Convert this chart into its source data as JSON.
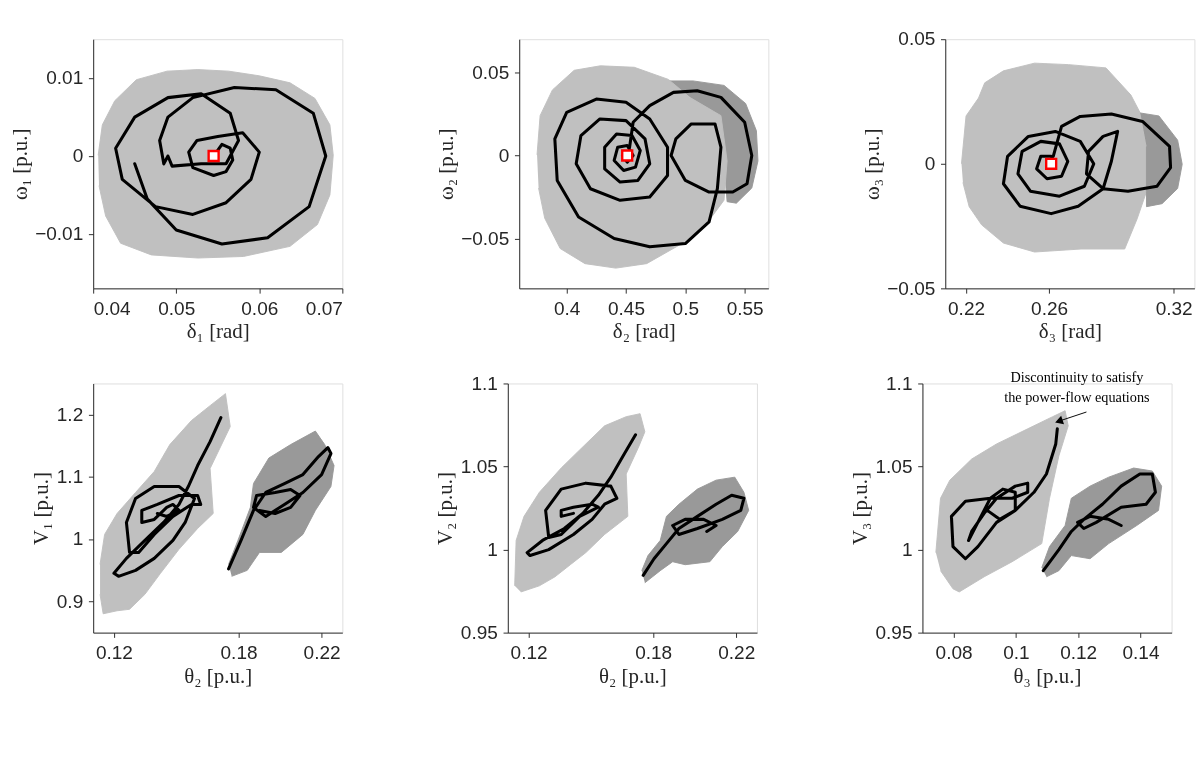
{
  "chart_data": [
    {
      "type": "line",
      "xlabel": "δ₁ [rad]",
      "ylabel": "ω₁ [p.u.]",
      "xlim": [
        0.04,
        0.07
      ],
      "ylim": [
        -0.017,
        0.015
      ],
      "xticks": [
        0.04,
        0.05,
        0.06,
        0.07
      ],
      "yticks": [
        -0.01,
        0,
        0.01
      ],
      "series": [
        {
          "type": "area",
          "color": "#c0c0c0",
          "x": [
            0.0406,
            0.0411,
            0.0426,
            0.0452,
            0.0489,
            0.0526,
            0.0563,
            0.06,
            0.0637,
            0.0667,
            0.0685,
            0.0689,
            0.0685,
            0.067,
            0.0637,
            0.0581,
            0.0526,
            0.047,
            0.0433,
            0.0415,
            0.0407
          ],
          "values": [
            0.0001,
            0.004,
            0.0071,
            0.0098,
            0.0109,
            0.0111,
            0.0109,
            0.0103,
            0.0094,
            0.0074,
            0.004,
            0.0001,
            -0.005,
            -0.0088,
            -0.0116,
            -0.0129,
            -0.0131,
            -0.0127,
            -0.0112,
            -0.0077,
            -0.0038
          ]
        },
        {
          "type": "line",
          "color": "#000000",
          "x": [
            0.0545,
            0.0555,
            0.0565,
            0.0568,
            0.056,
            0.0545,
            0.052,
            0.0515,
            0.0525,
            0.055,
            0.058,
            0.06,
            0.059,
            0.056,
            0.052,
            0.0475,
            0.0435,
            0.0427,
            0.045,
            0.049,
            0.053,
            0.0565,
            0.0575,
            0.056,
            0.053,
            0.0495,
            0.049,
            0.0485,
            0.048,
            0.049,
            0.052,
            0.057,
            0.062,
            0.0665,
            0.068,
            0.066,
            0.061,
            0.0555,
            0.05,
            0.0465,
            0.045
          ],
          "values": [
            0,
            0.0015,
            0.001,
            -0.0005,
            -0.002,
            -0.0025,
            -0.0015,
            0.0005,
            0.002,
            0.0025,
            0.003,
            0.0005,
            -0.003,
            -0.006,
            -0.0075,
            -0.0065,
            -0.003,
            0.001,
            0.005,
            0.0075,
            0.008,
            0.0055,
            0.002,
            -0.001,
            -0.001,
            -0.0013,
            0,
            -0.001,
            0.002,
            0.005,
            0.0075,
            0.0088,
            0.0085,
            0.0055,
            0,
            -0.0065,
            -0.0105,
            -0.0113,
            -0.0095,
            -0.0055,
            -0.001
          ]
        },
        {
          "type": "scatter",
          "color": "#ff0000",
          "marker": "square",
          "x": [
            0.0545
          ],
          "values": [
            0
          ]
        }
      ]
    },
    {
      "type": "line",
      "xlabel": "δ₂ [rad]",
      "ylabel": "ω₂ [p.u.]",
      "xlim": [
        0.36,
        0.57
      ],
      "ylim": [
        -0.08,
        0.07
      ],
      "xticks": [
        0.4,
        0.45,
        0.5,
        0.55
      ],
      "yticks": [
        -0.05,
        0,
        0.05
      ],
      "series": [
        {
          "type": "area",
          "color": "#999999",
          "x": [
            0.4857,
            0.5065,
            0.5326,
            0.5508,
            0.5599,
            0.5612,
            0.556,
            0.543,
            0.5352,
            0.5326,
            0.53,
            0.5039
          ],
          "values": [
            0.0449,
            0.0449,
            0.0422,
            0.0313,
            0.0149,
            -0.0033,
            -0.0196,
            -0.0287,
            -0.0278,
            -0.0033,
            0.024,
            0.0349
          ]
        },
        {
          "type": "area",
          "color": "#c0c0c0",
          "x": [
            0.375,
            0.3776,
            0.388,
            0.4063,
            0.4284,
            0.457,
            0.4857,
            0.5039,
            0.53,
            0.5352,
            0.5326,
            0.5195,
            0.4987,
            0.4674,
            0.4414,
            0.4154,
            0.3945,
            0.3815,
            0.3763
          ],
          "values": [
            0.0004,
            0.024,
            0.0395,
            0.0513,
            0.054,
            0.0531,
            0.0458,
            0.0349,
            0.024,
            -0.0033,
            -0.0269,
            -0.0396,
            -0.0524,
            -0.0651,
            -0.0678,
            -0.0651,
            -0.056,
            -0.0378,
            -0.0196
          ]
        },
        {
          "type": "line",
          "color": "#000000",
          "x": [
            0.453,
            0.456,
            0.47,
            0.49,
            0.51,
            0.53,
            0.55,
            0.556,
            0.552,
            0.54,
            0.52,
            0.5,
            0.488,
            0.492,
            0.505,
            0.525,
            0.53,
            0.527,
            0.52,
            0.5,
            0.47,
            0.44,
            0.41,
            0.392,
            0.39,
            0.4,
            0.425,
            0.45,
            0.47,
            0.485,
            0.485,
            0.47,
            0.445,
            0.42,
            0.408,
            0.412,
            0.428,
            0.45,
            0.466,
            0.47,
            0.46,
            0.445,
            0.432,
            0.432,
            0.442,
            0.455,
            0.462,
            0.458,
            0.448,
            0.44,
            0.443,
            0.451,
            0.456,
            0.451,
            0.447
          ],
          "values": [
            0.005,
            0.02,
            0.03,
            0.038,
            0.039,
            0.035,
            0.02,
            0,
            -0.017,
            -0.022,
            -0.022,
            -0.015,
            0,
            0.01,
            0.019,
            0.019,
            0.005,
            -0.02,
            -0.04,
            -0.053,
            -0.055,
            -0.05,
            -0.037,
            -0.015,
            0.01,
            0.026,
            0.034,
            0.032,
            0.022,
            0.005,
            -0.012,
            -0.025,
            -0.027,
            -0.02,
            -0.005,
            0.012,
            0.022,
            0.021,
            0.01,
            -0.005,
            -0.015,
            -0.016,
            -0.008,
            0.005,
            0.013,
            0.012,
            0.003,
            -0.007,
            -0.009,
            -0.003,
            0.005,
            0.006,
            0,
            -0.004,
            0
          ]
        },
        {
          "type": "scatter",
          "color": "#ff0000",
          "marker": "square",
          "x": [
            0.451
          ],
          "values": [
            0
          ]
        }
      ]
    },
    {
      "type": "line",
      "xlabel": "δ₃ [rad]",
      "ylabel": "ω₃ [p.u.]",
      "xlim": [
        0.21,
        0.33
      ],
      "ylim": [
        -0.05,
        0.05
      ],
      "xticks": [
        0.22,
        0.26,
        0.32
      ],
      "yticks": [
        -0.05,
        0,
        0.05
      ],
      "series": [
        {
          "type": "area",
          "color": "#c0c0c0",
          "x": [
            0.2178,
            0.22,
            0.226,
            0.229,
            0.238,
            0.253,
            0.2694,
            0.2874,
            0.2994,
            0.3039,
            0.3069,
            0.3069,
            0.3024,
            0.2964,
            0.2754,
            0.253,
            0.238,
            0.2275,
            0.2215,
            0.2185
          ],
          "values": [
            0,
            0.0192,
            0.0264,
            0.0325,
            0.0373,
            0.0404,
            0.0398,
            0.0385,
            0.0276,
            0.0204,
            0.007,
            -0.0112,
            -0.0221,
            -0.0342,
            -0.0342,
            -0.0354,
            -0.0318,
            -0.0245,
            -0.0172,
            -0.0075
          ]
        },
        {
          "type": "area",
          "color": "#999999",
          "x": [
            0.3039,
            0.3129,
            0.3219,
            0.3241,
            0.3219,
            0.3144,
            0.3069,
            0.3069,
            0.3069
          ],
          "values": [
            0.0204,
            0.0192,
            0.0095,
            -0.0002,
            -0.0099,
            -0.016,
            -0.0172,
            -0.0112,
            0.007
          ]
        },
        {
          "type": "line",
          "color": "#000000",
          "x": [
            0.262,
            0.266,
            0.275,
            0.29,
            0.305,
            0.318,
            0.3185,
            0.312,
            0.298,
            0.286,
            0.278,
            0.279,
            0.286,
            0.293,
            0.29,
            0.286,
            0.274,
            0.261,
            0.246,
            0.238,
            0.24,
            0.25,
            0.263,
            0.275,
            0.2815,
            0.277,
            0.265,
            0.251,
            0.245,
            0.247,
            0.256,
            0.265,
            0.269,
            0.266,
            0.259,
            0.254,
            0.256,
            0.261,
            0.263
          ],
          "values": [
            0.003,
            0.015,
            0.019,
            0.02,
            0.017,
            0.007,
            -0.0015,
            -0.009,
            -0.011,
            -0.01,
            -0.004,
            0.005,
            0.011,
            0.013,
            0.001,
            -0.01,
            -0.017,
            -0.02,
            -0.017,
            -0.008,
            0.003,
            0.011,
            0.013,
            0.009,
            0,
            -0.009,
            -0.013,
            -0.011,
            -0.004,
            0.005,
            0.009,
            0.008,
            0.001,
            -0.005,
            -0.006,
            -0.002,
            0.003,
            0.003,
            0
          ]
        },
        {
          "type": "scatter",
          "color": "#ff0000",
          "marker": "square",
          "x": [
            0.261
          ],
          "values": [
            0
          ]
        }
      ]
    },
    {
      "type": "line",
      "xlabel": "θ₂ [p.u.]",
      "ylabel": "V₁ [p.u.]",
      "xlim": [
        0.11,
        0.23
      ],
      "ylim": [
        0.85,
        1.25
      ],
      "xticks": [
        0.12,
        0.18,
        0.22
      ],
      "yticks": [
        0.9,
        1,
        1.1,
        1.2
      ],
      "series": [
        {
          "type": "area",
          "color": "#c0c0c0",
          "x": [
            0.1133,
            0.1155,
            0.1215,
            0.1304,
            0.1394,
            0.1469,
            0.1573,
            0.1663,
            0.1737,
            0.176,
            0.1663,
            0.1678,
            0.1603,
            0.1513,
            0.1424,
            0.1349,
            0.1275,
            0.1215,
            0.1148,
            0.1133
          ],
          "values": [
            0.9596,
            1.0077,
            1.0413,
            1.075,
            1.1087,
            1.1519,
            1.1904,
            1.2144,
            1.2337,
            1.1808,
            1.1135,
            1.0413,
            1.0173,
            0.9837,
            0.9452,
            0.9115,
            0.8875,
            0.8851,
            0.8803,
            0.9115
          ]
        },
        {
          "type": "area",
          "color": "#999999",
          "x": [
            0.1752,
            0.1797,
            0.1857,
            0.1872,
            0.1946,
            0.2051,
            0.217,
            0.2215,
            0.226,
            0.2245,
            0.217,
            0.211,
            0.2006,
            0.1901,
            0.1842,
            0.1767
          ],
          "values": [
            0.9596,
            0.9981,
            1.051,
            1.0894,
            1.1303,
            1.1519,
            1.1736,
            1.1519,
            1.1183,
            1.0846,
            1.0462,
            1.0077,
            0.9788,
            0.9788,
            0.95,
            0.9404
          ]
        },
        {
          "type": "line",
          "color": "#000000",
          "x": [
            0.1715,
            0.1663,
            0.1603,
            0.1558,
            0.1513,
            0.1439,
            0.1349,
            0.126,
            0.12,
            0.1222,
            0.1304,
            0.1394,
            0.1484,
            0.1543,
            0.1588,
            0.1513,
            0.1394,
            0.1304,
            0.126,
            0.1275,
            0.1319,
            0.1394,
            0.1484,
            0.1573,
            0.1618,
            0.1603,
            0.1513,
            0.1409,
            0.1334,
            0.1334,
            0.1394,
            0.1454,
            0.1484,
            0.1513,
            0.1454,
            0.1409
          ],
          "values": [
            1.1952,
            1.1567,
            1.1183,
            1.0846,
            1.0558,
            1.0269,
            0.9981,
            0.9692,
            0.9452,
            0.9404,
            0.95,
            0.9692,
            0.9981,
            1.0269,
            1.0654,
            1.0846,
            1.0846,
            1.0654,
            1.0269,
            0.9788,
            0.9788,
            1.0077,
            1.0365,
            1.0558,
            1.0558,
            1.0702,
            1.0702,
            1.0558,
            1.0462,
            1.0269,
            1.0317,
            1.051,
            1.0558,
            1.0462,
            1.0365,
            1.0413
          ]
        },
        {
          "type": "line",
          "color": "#000000",
          "x": [
            0.1752,
            0.1812,
            0.1872,
            0.1931,
            0.2021,
            0.211,
            0.2185,
            0.223,
            0.2245,
            0.22,
            0.211,
            0.2021,
            0.1931,
            0.1872,
            0.1887,
            0.1976,
            0.2051,
            0.2096,
            0.2051,
            0.1976,
            0.1901
          ],
          "values": [
            0.9524,
            0.9981,
            1.0462,
            1.075,
            1.0894,
            1.1038,
            1.1327,
            1.1471,
            1.1375,
            1.1038,
            1.075,
            1.0558,
            1.0365,
            1.051,
            1.0702,
            1.075,
            1.0798,
            1.0702,
            1.051,
            1.0413,
            1.0462
          ]
        }
      ]
    },
    {
      "type": "line",
      "xlabel": "θ₂ [p.u.]",
      "ylabel": "V₂ [p.u.]",
      "xlim": [
        0.11,
        0.23
      ],
      "ylim": [
        0.95,
        1.1
      ],
      "xticks": [
        0.12,
        0.18,
        0.22
      ],
      "yticks": [
        0.95,
        1,
        1.05,
        1.1
      ],
      "series": [
        {
          "type": "area",
          "color": "#c0c0c0",
          "x": [
            0.1133,
            0.114,
            0.1178,
            0.1252,
            0.1357,
            0.1446,
            0.1566,
            0.167,
            0.1737,
            0.176,
            0.173,
            0.167,
            0.1678,
            0.1566,
            0.1476,
            0.1401,
            0.1327,
            0.1252,
            0.1163
          ],
          "values": [
            0.9782,
            1.0055,
            1.02,
            1.0345,
            1.0491,
            1.06,
            1.0745,
            1.08,
            1.0818,
            1.0709,
            1.0618,
            1.0455,
            1.02,
            1.0091,
            0.9982,
            0.9909,
            0.9836,
            0.9782,
            0.9745
          ]
        },
        {
          "type": "area",
          "color": "#999999",
          "x": [
            0.1745,
            0.1775,
            0.1834,
            0.1864,
            0.1924,
            0.2013,
            0.2103,
            0.2193,
            0.2237,
            0.226,
            0.2207,
            0.2133,
            0.2073,
            0.1954,
            0.1894,
            0.1834,
            0.176
          ],
          "values": [
            0.9873,
            0.9964,
            1.0055,
            1.02,
            1.0273,
            1.0364,
            1.0418,
            1.0436,
            1.0345,
            1.0236,
            1.0109,
            1.0018,
            0.9927,
            0.9909,
            0.9927,
            0.9873,
            0.98
          ]
        },
        {
          "type": "line",
          "color": "#000000",
          "x": [
            0.1715,
            0.1655,
            0.1596,
            0.1536,
            0.1461,
            0.1372,
            0.1267,
            0.1193,
            0.1207,
            0.1297,
            0.1416,
            0.1506,
            0.1566,
            0.1625,
            0.1596,
            0.1476,
            0.1357,
            0.1282,
            0.1297,
            0.1357,
            0.1446,
            0.1536,
            0.1506,
            0.1416,
            0.1357,
            0.1357,
            0.1416
          ],
          "values": [
            1.0691,
            1.0564,
            1.0436,
            1.0327,
            1.0218,
            1.0127,
            1.0055,
            0.9982,
            0.9964,
            1.0,
            1.0091,
            1.0182,
            1.0273,
            1.0309,
            1.0382,
            1.04,
            1.0364,
            1.0236,
            1.0073,
            1.0091,
            1.02,
            1.0255,
            1.0273,
            1.0255,
            1.0236,
            1.02,
            1.0218
          ]
        },
        {
          "type": "line",
          "color": "#000000",
          "x": [
            0.1752,
            0.1804,
            0.1864,
            0.1924,
            0.2013,
            0.2103,
            0.2178,
            0.2237,
            0.2222,
            0.2133,
            0.2013,
            0.1924,
            0.1894,
            0.1954,
            0.2043,
            0.2103,
            0.2058
          ],
          "values": [
            0.9845,
            0.9945,
            1.0036,
            1.0127,
            1.02,
            1.0273,
            1.0327,
            1.0309,
            1.0236,
            1.0182,
            1.0127,
            1.0091,
            1.0145,
            1.0182,
            1.0182,
            1.0145,
            1.0109
          ]
        }
      ]
    },
    {
      "type": "line",
      "xlabel": "θ₃ [p.u.]",
      "ylabel": "V₃ [p.u.]",
      "xlim": [
        0.07,
        0.15
      ],
      "ylim": [
        0.95,
        1.1
      ],
      "xticks": [
        0.08,
        0.1,
        0.12,
        0.14
      ],
      "yticks": [
        0.95,
        1,
        1.05,
        1.1
      ],
      "annotations": [
        {
          "text": "Discontinuity to satisfy the power-flow equations",
          "x": 0.1138,
          "y": 1.0773
        }
      ],
      "series": [
        {
          "type": "area",
          "color": "#c0c0c0",
          "x": [
            0.0743,
            0.0758,
            0.0788,
            0.0858,
            0.0938,
            0.1038,
            0.1118,
            0.1158,
            0.1168,
            0.1138,
            0.1108,
            0.1083,
            0.0988,
            0.0898,
            0.0818,
            0.0798,
            0.0758
          ],
          "values": [
            0.9982,
            1.0309,
            1.0418,
            1.0545,
            1.0636,
            1.0727,
            1.08,
            1.0836,
            1.0745,
            1.0564,
            1.0309,
            1.0036,
            0.9927,
            0.9836,
            0.9745,
            0.9764,
            0.9873
          ]
        },
        {
          "type": "area",
          "color": "#999999",
          "x": [
            0.1083,
            0.1108,
            0.1158,
            0.1178,
            0.1238,
            0.1298,
            0.1378,
            0.1438,
            0.1468,
            0.1458,
            0.1388,
            0.1298,
            0.1238,
            0.1178,
            0.1138,
            0.1098
          ],
          "values": [
            0.9891,
            1.0018,
            1.0145,
            1.0309,
            1.0382,
            1.0436,
            1.0491,
            1.0473,
            1.0382,
            1.0236,
            1.0145,
            1.0036,
            0.9945,
            0.9964,
            0.9873,
            0.9836
          ]
        },
        {
          "type": "line",
          "color": "#000000",
          "x": [
            0.1133,
            0.1128,
            0.1098,
            0.1058,
            0.0998,
            0.0938,
            0.0878,
            0.0838,
            0.0798,
            0.0793,
            0.0838,
            0.0918,
            0.0988,
            0.1038,
            0.1038,
            0.0998,
            0.0938,
            0.0898,
            0.0858,
            0.0848,
            0.0878,
            0.0918,
            0.0958,
            0.0998,
            0.0998,
            0.0948,
            0.0908
          ],
          "values": [
            1.0727,
            1.0636,
            1.0455,
            1.0345,
            1.0236,
            1.0164,
            1.0018,
            0.9945,
            1.0018,
            1.02,
            1.0291,
            1.0309,
            1.0309,
            1.0345,
            1.04,
            1.0382,
            1.0309,
            1.0218,
            1.0109,
            1.0055,
            1.0164,
            1.0309,
            1.0364,
            1.0345,
            1.0236,
            1.0182,
            1.0236
          ]
        },
        {
          "type": "line",
          "color": "#000000",
          "x": [
            0.1088,
            0.1138,
            0.1178,
            0.1218,
            0.1278,
            0.1338,
            0.1398,
            0.1438,
            0.1448,
            0.1418,
            0.1338,
            0.1258,
            0.1218,
            0.1198,
            0.1238,
            0.1298,
            0.1338
          ],
          "values": [
            0.9873,
            1.0,
            1.0109,
            1.0182,
            1.0273,
            1.0382,
            1.0455,
            1.0455,
            1.0345,
            1.0273,
            1.0255,
            1.0164,
            1.0127,
            1.0164,
            1.02,
            1.0182,
            1.0145
          ]
        }
      ]
    }
  ]
}
